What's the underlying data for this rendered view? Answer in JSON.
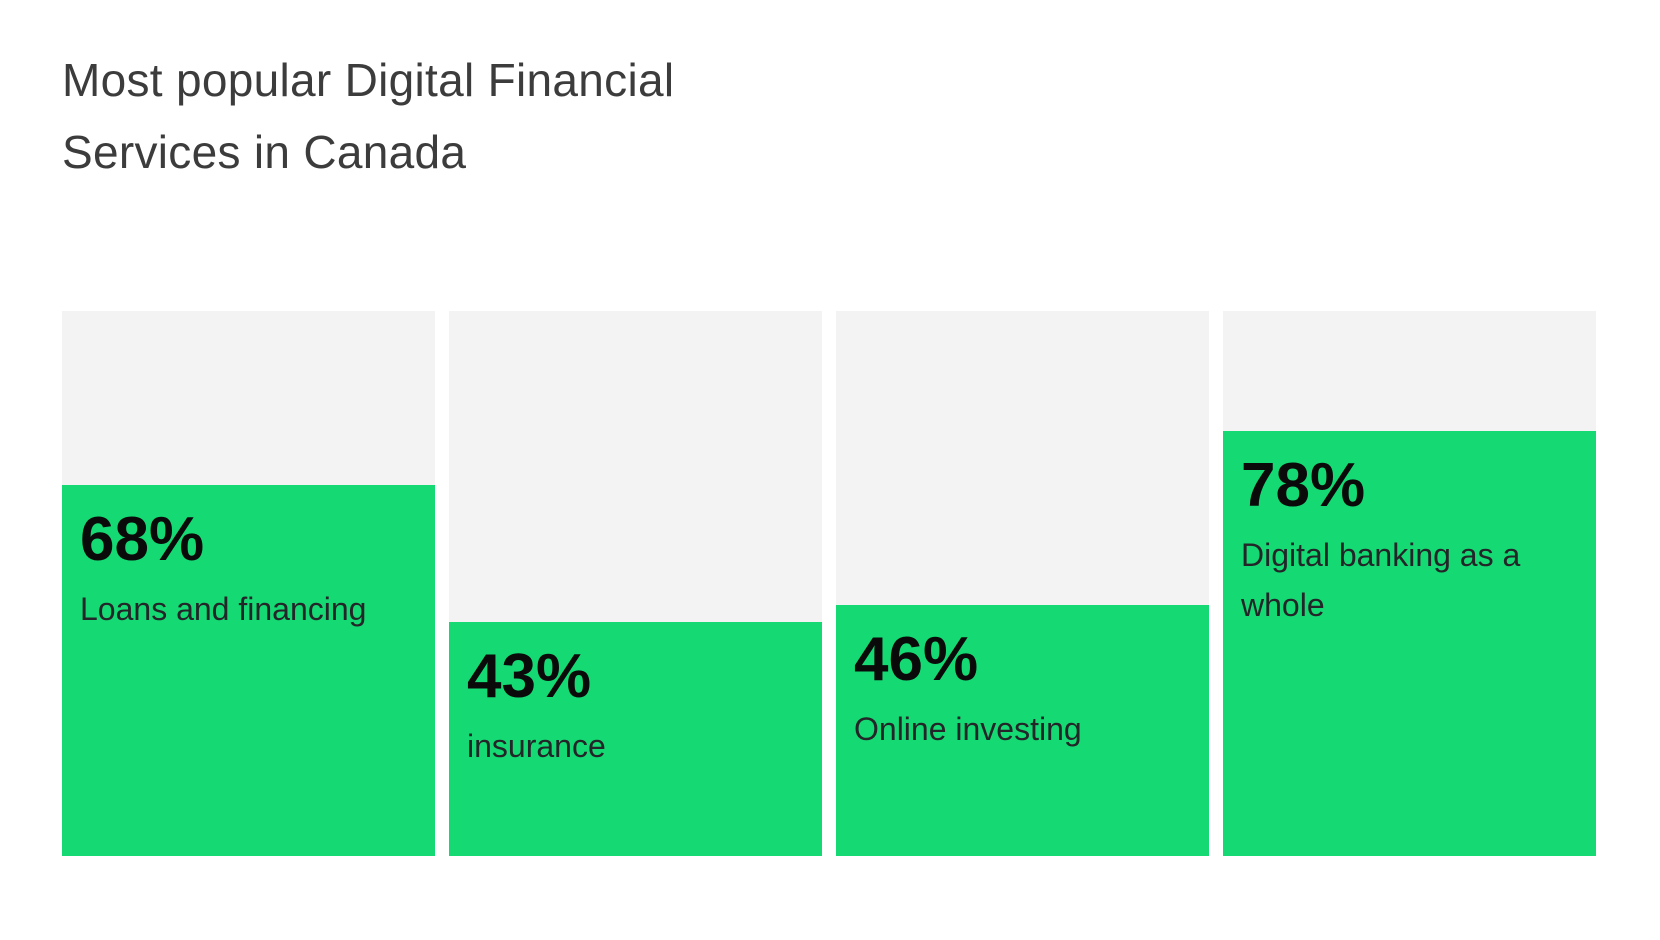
{
  "title": "Most popular Digital Financial Services in Canada",
  "chart_data": {
    "type": "bar",
    "title": "Most popular Digital Financial Services in Canada",
    "categories": [
      "Loans and financing",
      "insurance",
      "Online investing",
      "Digital banking as a whole"
    ],
    "values": [
      68,
      43,
      46,
      78
    ],
    "value_labels": [
      "68%",
      "43%",
      "46%",
      "78%"
    ],
    "xlabel": "",
    "ylabel": "",
    "ylim": [
      0,
      100
    ],
    "grid": false,
    "legend": false,
    "bar_orientation": "vertical",
    "value_label_position": "inside-top-left",
    "category_label_position": "inside-bar-below-value"
  },
  "colors": {
    "bar_fill": "#15d973",
    "bar_track": "#f3f3f3",
    "title_text": "#3c3c3c",
    "value_text": "#0a0a0a",
    "label_text": "#232528",
    "background": "#ffffff"
  }
}
